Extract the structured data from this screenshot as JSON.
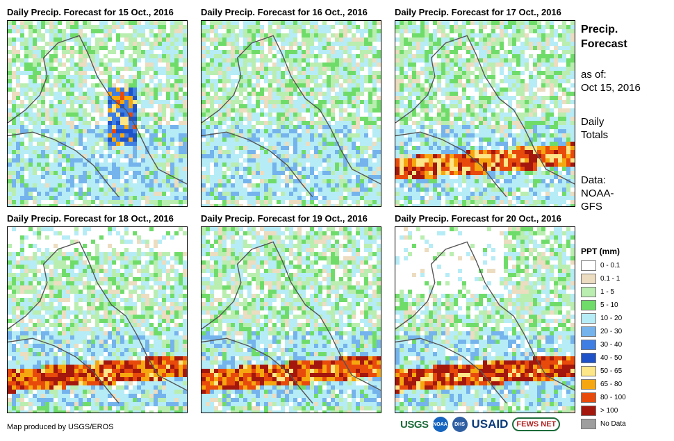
{
  "panels": [
    {
      "title": "Daily Precip. Forecast for 15 Oct., 2016"
    },
    {
      "title": "Daily Precip. Forecast for 16 Oct., 2016"
    },
    {
      "title": "Daily Precip. Forecast for 17 Oct., 2016"
    },
    {
      "title": "Daily Precip. Forecast for 18 Oct., 2016"
    },
    {
      "title": "Daily Precip. Forecast for 19 Oct., 2016"
    },
    {
      "title": "Daily Precip. Forecast for 20 Oct., 2016"
    }
  ],
  "sidebar": {
    "title_line1": "Precip.",
    "title_line2": "Forecast",
    "asof_label": "as of:",
    "asof_date": "Oct 15, 2016",
    "totals_line1": "Daily",
    "totals_line2": "Totals",
    "data_line1": "Data:",
    "data_line2": "NOAA-",
    "data_line3": "GFS"
  },
  "legend": {
    "title": "PPT (mm)",
    "items": [
      {
        "label": "0 - 0.1",
        "color": "#ffffff"
      },
      {
        "label": "0.1 - 1",
        "color": "#ecdcc0"
      },
      {
        "label": "1 - 5",
        "color": "#b9eeb0"
      },
      {
        "label": "5 - 10",
        "color": "#6fdc6a"
      },
      {
        "label": "10 - 20",
        "color": "#b6ecf6"
      },
      {
        "label": "20 - 30",
        "color": "#74b3ec"
      },
      {
        "label": "30 - 40",
        "color": "#3f7fe4"
      },
      {
        "label": "40 - 50",
        "color": "#1d52c9"
      },
      {
        "label": "50 - 65",
        "color": "#fde687"
      },
      {
        "label": "65 - 80",
        "color": "#f6a70f"
      },
      {
        "label": "80 - 100",
        "color": "#e84a0c"
      },
      {
        "label": "> 100",
        "color": "#a3170d"
      },
      {
        "label": "No Data",
        "color": "#9e9e9e"
      }
    ]
  },
  "footer": {
    "credit": "Map produced by USGS/EROS"
  },
  "logos": {
    "usgs": "USGS",
    "noaa": "NOAA",
    "dhs": "DHS",
    "usaid": "USAID",
    "fews": "FEWS NET"
  }
}
